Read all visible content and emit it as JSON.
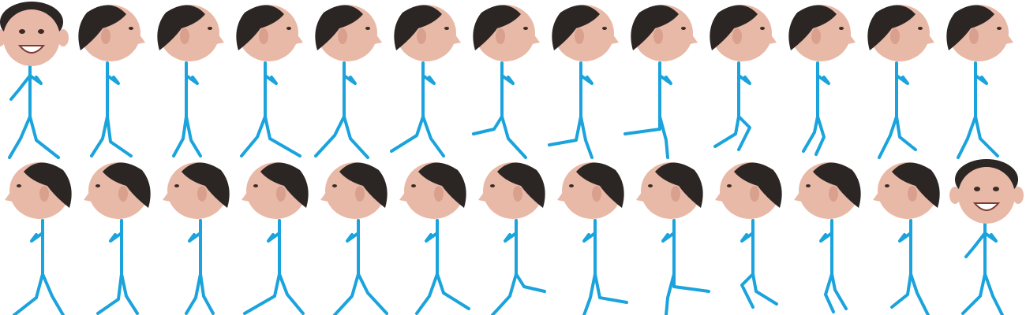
{
  "sprite_sheet": {
    "rows": [
      {
        "name": "walk-right",
        "frames": [
          {
            "face": "front",
            "expression": "smile"
          },
          {
            "face": "profile-right"
          },
          {
            "face": "profile-right"
          },
          {
            "face": "profile-right"
          },
          {
            "face": "profile-right"
          },
          {
            "face": "profile-right"
          },
          {
            "face": "profile-right"
          },
          {
            "face": "profile-right"
          },
          {
            "face": "profile-right"
          },
          {
            "face": "profile-right"
          },
          {
            "face": "profile-right"
          },
          {
            "face": "profile-right"
          },
          {
            "face": "profile-right"
          }
        ]
      },
      {
        "name": "walk-left",
        "frames": [
          {
            "face": "profile-left"
          },
          {
            "face": "profile-left"
          },
          {
            "face": "profile-left"
          },
          {
            "face": "profile-left"
          },
          {
            "face": "profile-left"
          },
          {
            "face": "profile-left"
          },
          {
            "face": "profile-left"
          },
          {
            "face": "profile-left"
          },
          {
            "face": "profile-left"
          },
          {
            "face": "profile-left"
          },
          {
            "face": "profile-left"
          },
          {
            "face": "profile-left"
          },
          {
            "face": "front",
            "expression": "smile"
          }
        ]
      }
    ],
    "colors": {
      "background": "#ffffff",
      "stick": "#1aa3dc",
      "skin": "#e9b9a8",
      "hair": "#2b2624"
    }
  }
}
